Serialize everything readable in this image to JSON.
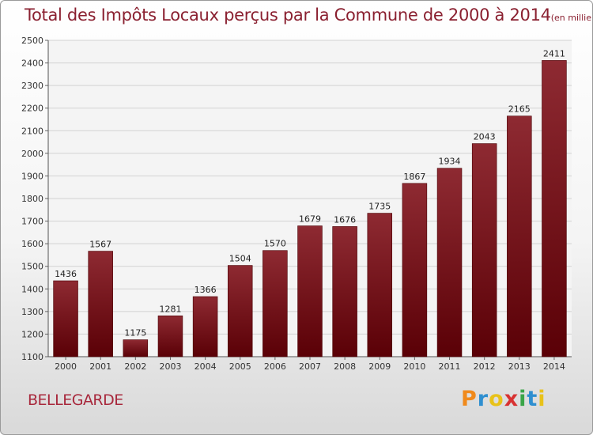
{
  "chart_data": {
    "type": "bar",
    "title": "Total des Impôts Locaux perçus par la Commune de 2000 à 2014",
    "unit_label": "(en milliers d'€)",
    "categories": [
      "2000",
      "2001",
      "2002",
      "2003",
      "2004",
      "2005",
      "2006",
      "2007",
      "2008",
      "2009",
      "2010",
      "2011",
      "2012",
      "2013",
      "2014"
    ],
    "values": [
      1436,
      1567,
      1175,
      1281,
      1366,
      1504,
      1570,
      1679,
      1676,
      1735,
      1867,
      1934,
      2043,
      2165,
      2411
    ],
    "ylim": [
      1100,
      2500
    ],
    "yticks": [
      1100,
      1200,
      1300,
      1400,
      1500,
      1600,
      1700,
      1800,
      1900,
      2000,
      2100,
      2200,
      2300,
      2400,
      2500
    ],
    "xlabel": "",
    "ylabel": "",
    "grid": true,
    "bar_color": "#7a1a22"
  },
  "footer": {
    "commune": "BELLEGARDE",
    "brand_letters": [
      "P",
      "r",
      "o",
      "x",
      "i",
      "t",
      "i"
    ],
    "brand_colors": [
      "#f08a1c",
      "#2f8fd0",
      "#e8c21a",
      "#d83232",
      "#3aa548",
      "#2f8fd0",
      "#e8c21a"
    ]
  }
}
